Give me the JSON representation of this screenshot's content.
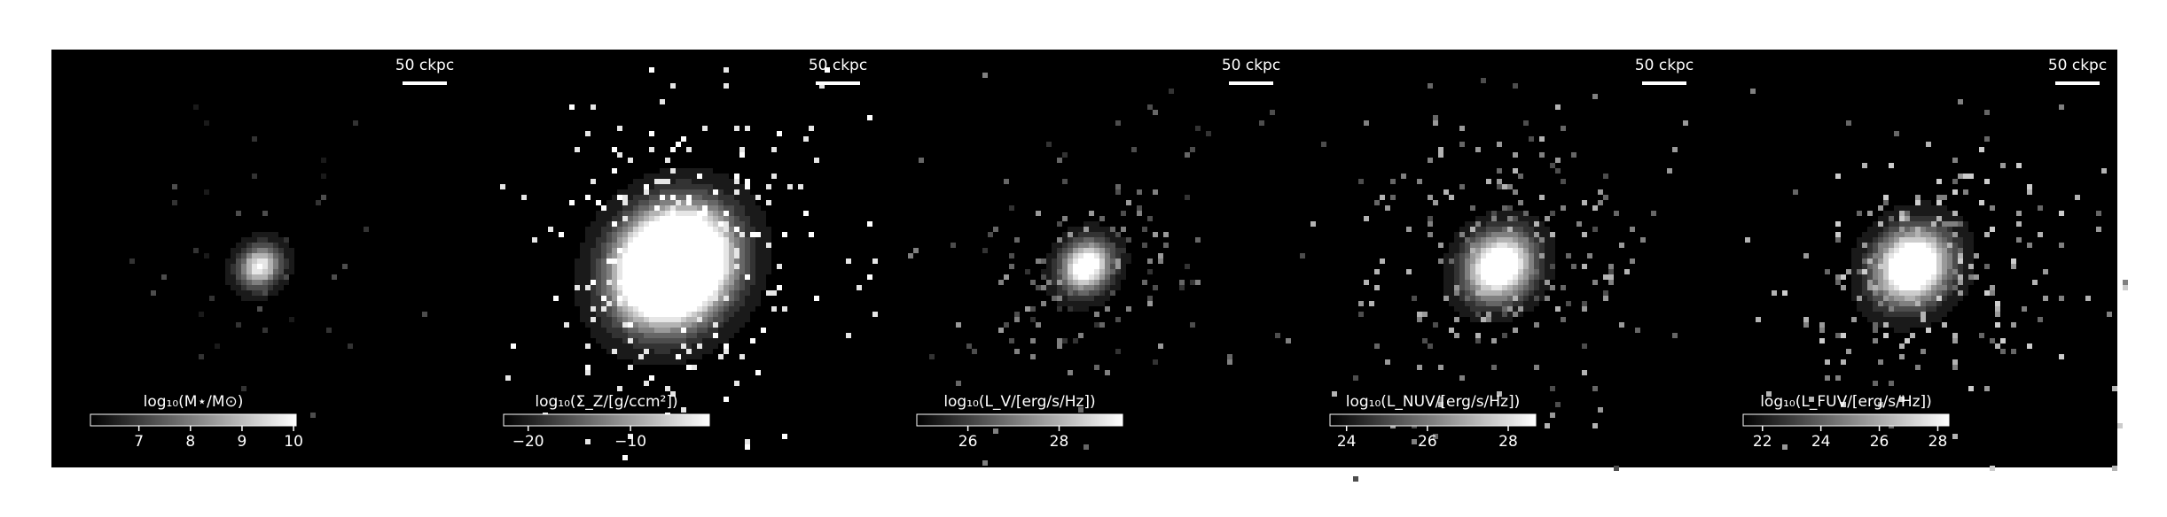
{
  "chart_data": [
    {
      "type": "image",
      "scalebar_label": "50 ckpc",
      "colorbar_label": "log₁₀(M⋆/M⊙)",
      "clim": [
        6.06,
        10.05
      ],
      "cticks": [
        7,
        8,
        9,
        10
      ]
    },
    {
      "type": "image",
      "scalebar_label": "50 ckpc",
      "colorbar_label": "log₁₀(Σ_Z/[g/ccm²])",
      "clim": [
        -22.4,
        -2.3
      ],
      "cticks": [
        {
          "value": -20,
          "label": "−20"
        },
        {
          "value": -10,
          "label": "−10"
        }
      ]
    },
    {
      "type": "image",
      "scalebar_label": "50 ckpc",
      "colorbar_label": "log₁₀(L_V/[erg/s/Hz])",
      "clim": [
        24.88,
        29.39
      ],
      "cticks": [
        26,
        28
      ]
    },
    {
      "type": "image",
      "scalebar_label": "50 ckpc",
      "colorbar_label": "log₁₀(L_NUV/[erg/s/Hz])",
      "clim": [
        23.59,
        28.68
      ],
      "cticks": [
        24,
        26,
        28
      ]
    },
    {
      "type": "image",
      "scalebar_label": "50 ckpc",
      "colorbar_label": "log₁₀(L_FUV/[erg/s/Hz])",
      "clim": [
        21.34,
        28.38
      ],
      "cticks": [
        22,
        24,
        26,
        28
      ]
    }
  ]
}
